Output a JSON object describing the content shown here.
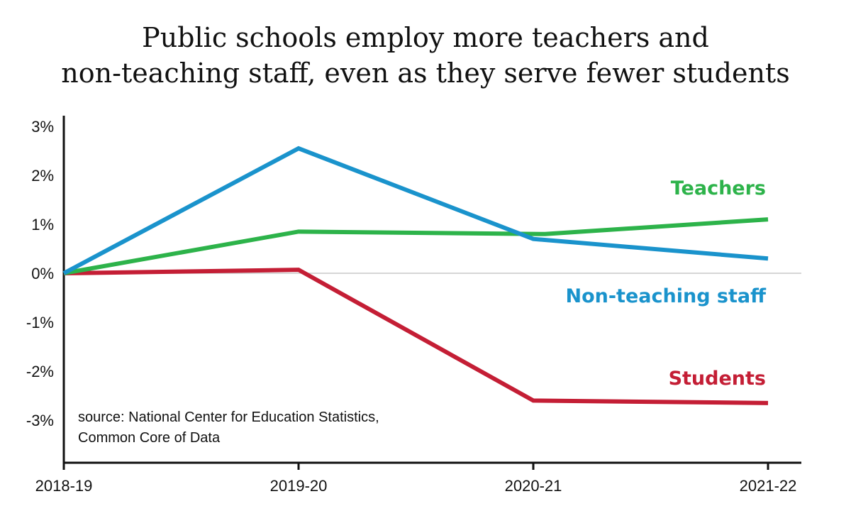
{
  "chart_data": {
    "type": "line",
    "title": "Public schools employ more teachers and non-teaching staff, even as they serve fewer students",
    "title_lines": [
      "Public schools employ more teachers and",
      "non-teaching staff, even as they serve fewer students"
    ],
    "xlabel": "",
    "ylabel": "",
    "categories": [
      "2018-19",
      "2019-20",
      "2020-21",
      "2021-22"
    ],
    "ylim": [
      -3.9,
      3.1
    ],
    "yticks": [
      3,
      2,
      1,
      0,
      -1,
      -2,
      -3
    ],
    "ytick_labels": [
      "3%",
      "2%",
      "1%",
      "0%",
      "-1%",
      "-2%",
      "-3%"
    ],
    "zero_line": true,
    "grid": false,
    "legend": "inline-right",
    "series": [
      {
        "name": "Teachers",
        "color": "#2db34a",
        "values": [
          0,
          0.85,
          0.8,
          1.1
        ],
        "x_positions": [
          0,
          1,
          2.05,
          3
        ]
      },
      {
        "name": "Non-teaching staff",
        "color": "#1a93cc",
        "values": [
          0,
          2.55,
          0.7,
          0.3
        ],
        "x_positions": [
          0,
          1,
          2,
          3
        ]
      },
      {
        "name": "Students",
        "color": "#c41e35",
        "values": [
          0,
          0.07,
          -2.6,
          -2.65
        ],
        "x_positions": [
          0,
          1,
          2,
          3
        ]
      }
    ],
    "annotations": [
      "source: National Center for Education Statistics,",
      "Common Core of Data"
    ]
  }
}
